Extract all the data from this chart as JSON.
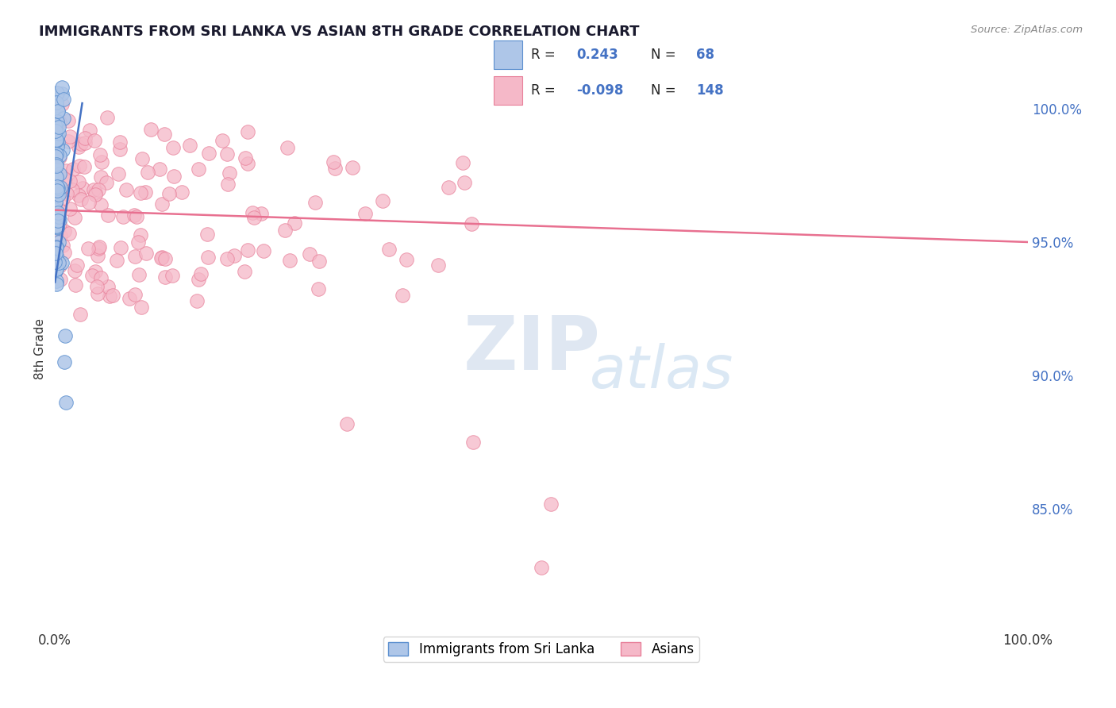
{
  "title": "IMMIGRANTS FROM SRI LANKA VS ASIAN 8TH GRADE CORRELATION CHART",
  "source": "Source: ZipAtlas.com",
  "ylabel": "8th Grade",
  "legend_label1": "Immigrants from Sri Lanka",
  "legend_label2": "Asians",
  "r1": 0.243,
  "n1": 68,
  "r2": -0.098,
  "n2": 148,
  "color_blue_fill": "#aec6e8",
  "color_blue_edge": "#5b8fcf",
  "color_pink_fill": "#f5b8c8",
  "color_pink_edge": "#e8809a",
  "color_trendline_blue": "#4472c4",
  "color_trendline_pink": "#e87090",
  "watermark_color": "#d0dff0",
  "watermark_text_color": "#c8d8e8",
  "xlim": [
    0.0,
    1.0
  ],
  "ylim": [
    80.5,
    101.5
  ],
  "yticks": [
    85.0,
    90.0,
    95.0,
    100.0
  ],
  "ytick_labels": [
    "85.0%",
    "90.0%",
    "95.0%",
    "100.0%"
  ],
  "bg_color": "#ffffff",
  "grid_color": "#cccccc",
  "title_color": "#1a1a2e",
  "source_color": "#888888"
}
